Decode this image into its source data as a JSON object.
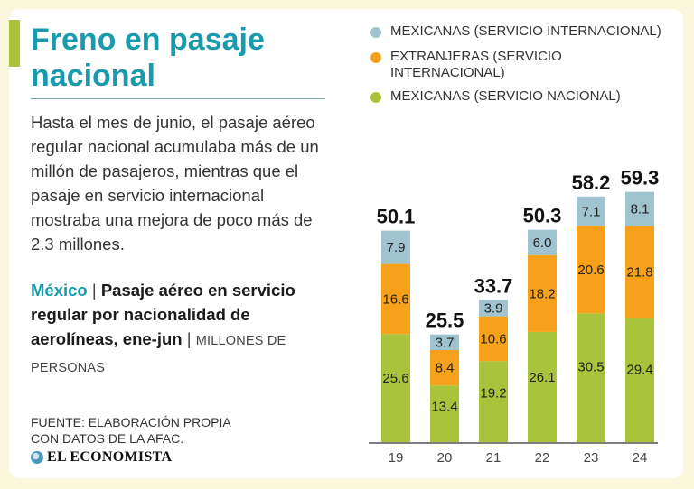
{
  "title": "Freno en pasaje nacional",
  "lede": "Hasta el mes de junio, el pasaje aéreo regular nacional acumulaba más de un millón de pasajeros, mientras que el pasaje en servicio internacional mostraba una mejora de poco más de 2.3 millones.",
  "subtitle": {
    "country": "México",
    "separator": "|",
    "heading": "Pasaje aéreo en servicio regular por nacionalidad de aerolíneas, ene-jun",
    "separator2": "|",
    "unit": "MILLONES DE PERSONAS"
  },
  "source": "FUENTE: ELABORACIÓN PROPIA CON DATOS DE LA AFAC.",
  "brand": "EL ECONOMISTA",
  "colors": {
    "background": "#fbf7dc",
    "accent": "#a9c33a",
    "title": "#1a9aad"
  },
  "chart_data": {
    "type": "bar",
    "stacked": true,
    "categories": [
      "19",
      "20",
      "21",
      "22",
      "23",
      "24"
    ],
    "series": [
      {
        "name": "MEXICANAS (SERVICIO NACIONAL)",
        "color": "#a9c33a",
        "values": [
          25.6,
          13.4,
          19.2,
          26.1,
          30.5,
          29.4
        ]
      },
      {
        "name": "EXTRANJERAS (SERVICIO INTERNACIONAL)",
        "color": "#f7a11a",
        "values": [
          16.6,
          8.4,
          10.6,
          18.2,
          20.6,
          21.8
        ]
      },
      {
        "name": "MEXICANAS (SERVICIO INTERNACIONAL)",
        "color": "#9fc4cf",
        "values": [
          7.9,
          3.7,
          3.9,
          6.0,
          7.1,
          8.1
        ]
      }
    ],
    "totals": [
      "50.1",
      "25.5",
      "33.7",
      "50.3",
      "58.2",
      "59.3"
    ],
    "segment_labels": [
      [
        "25.6",
        "13.4",
        "19.2",
        "26.1",
        "30.5",
        "29.4"
      ],
      [
        "16.6",
        "8.4",
        "10.6",
        "18.2",
        "20.6",
        "21.8"
      ],
      [
        "7.9",
        "3.7",
        "3.9",
        "6.0",
        "7.1",
        "8.1"
      ]
    ],
    "legend": [
      "MEXICANAS (SERVICIO INTERNACIONAL)",
      "EXTRANJERAS (SERVICIO INTERNACIONAL)",
      "MEXICANAS (SERVICIO NACIONAL)"
    ],
    "legend_colors": [
      "#9fc4cf",
      "#f7a11a",
      "#a9c33a"
    ],
    "ylim": [
      0,
      62
    ],
    "legend_position": "top",
    "grid": false
  }
}
